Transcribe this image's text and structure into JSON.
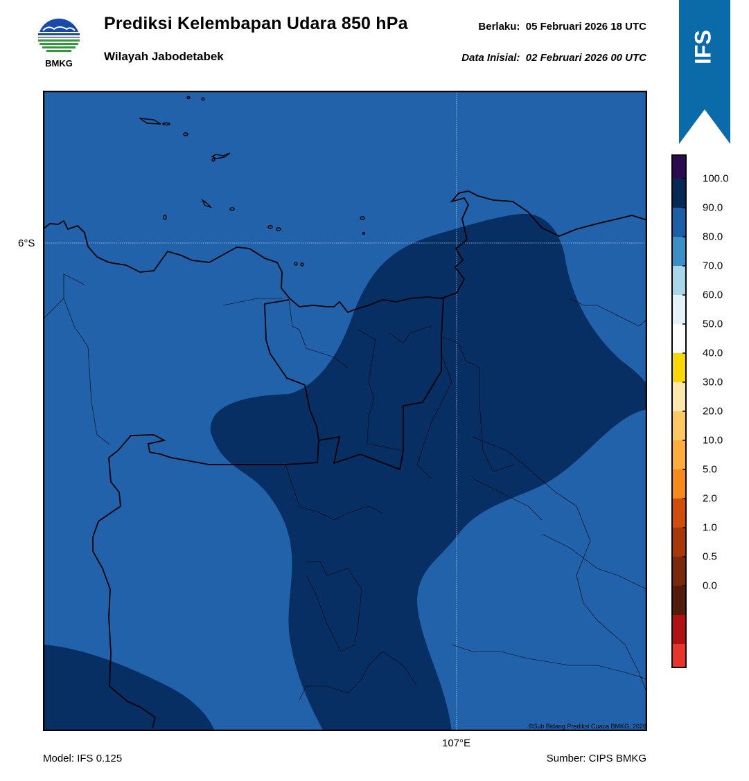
{
  "header": {
    "logo_text": "BMKG",
    "title": "Prediksi Kelembapan Udara 850 hPa",
    "subtitle": "Wilayah Jabodetabek",
    "valid_label": "Berlaku:  05 Februari 2026 18 UTC",
    "init_label": "Data Inisial:  02 Februari 2026 00 UTC"
  },
  "model_banner": {
    "text": "IFS",
    "color": "#0b6aa8"
  },
  "map": {
    "lat_label": "6°S",
    "lon_label": "107°E",
    "copyright": "©Sub Bidang Prediksi Cuaca BMKG, 2026",
    "fill_colors": {
      "class_80_90": "#2162ab",
      "class_90_100": "#082f63"
    }
  },
  "colorbar": {
    "tick_labels": [
      "100.0",
      "90.0",
      "80.0",
      "70.0",
      "60.0",
      "50.0",
      "40.0",
      "30.0",
      "20.0",
      "10.0",
      "5.0",
      "2.0",
      "1.0",
      "0.5",
      "0.0"
    ],
    "colors_top_to_bottom": [
      "#2b0a4f",
      "#062a55",
      "#1d5ea8",
      "#3a8fc6",
      "#a9d7ea",
      "#e4f1f8",
      "#ffffff",
      "#f8d800",
      "#fde8ab",
      "#ffc860",
      "#ffac3c",
      "#f38a1a",
      "#d04e0a",
      "#a8380a",
      "#7a2a0a",
      "#521c0a",
      "#b01212",
      "#e8352b"
    ]
  },
  "footer": {
    "model": "Model: IFS 0.125",
    "source": "Sumber: CIPS BMKG"
  }
}
